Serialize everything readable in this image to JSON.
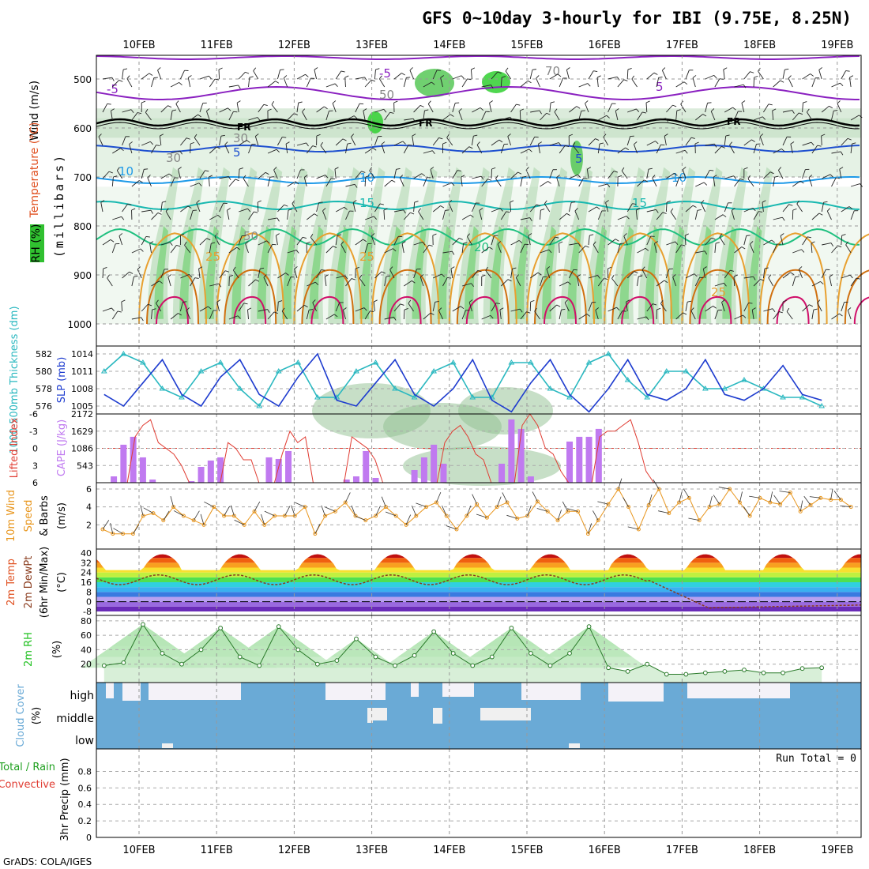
{
  "title": "GFS 0~10day 3-hourly for IBI (9.75E, 8.25N)",
  "footer": "GrADS: COLA/IGES",
  "dates": [
    "10FEB",
    "11FEB",
    "12FEB",
    "13FEB",
    "14FEB",
    "15FEB",
    "16FEB",
    "17FEB",
    "18FEB",
    "19FEB"
  ],
  "panels": {
    "upper": {
      "ylabels": [
        "Wind (m/s)",
        "Temperature (°C)",
        "RH (%)",
        "(millibars)"
      ],
      "yticks": [
        "500",
        "600",
        "700",
        "800",
        "900",
        "1000"
      ],
      "contour_labels": [
        "-5",
        "-5",
        "5",
        "FR",
        "FR",
        "FR",
        "5",
        "5",
        "10",
        "10",
        "10",
        "15",
        "15",
        "20",
        "25",
        "25",
        "25",
        "30",
        "30",
        "50",
        "50",
        "70"
      ]
    },
    "slp": {
      "ylabels": [
        "1000-500mb Thickness (dm)",
        "SLP (mb)"
      ],
      "thickness_ticks": [
        "582",
        "580",
        "578",
        "576"
      ],
      "slp_ticks": [
        "1014",
        "1011",
        "1008",
        "1005"
      ]
    },
    "cape": {
      "ylabels": [
        "Lifted Index",
        "CAPE (J/kg)"
      ],
      "li_ticks": [
        "-6",
        "-3",
        "0",
        "3",
        "6"
      ],
      "cape_ticks": [
        "2172",
        "1629",
        "1086",
        "543"
      ]
    },
    "wind10": {
      "ylabels": [
        "10m Wind",
        "Speed",
        "& Barbs",
        "(m/s)"
      ],
      "yticks": [
        "6",
        "4",
        "2"
      ]
    },
    "temp2m": {
      "ylabels": [
        "2m Temp",
        "2m DewPt",
        "(6hr Min/Max)",
        "(°C)"
      ],
      "yticks": [
        "40",
        "32",
        "24",
        "16",
        "8",
        "0",
        "-8"
      ]
    },
    "rh2m": {
      "ylabels": [
        "2m RH",
        "(%)"
      ],
      "yticks": [
        "80",
        "60",
        "40",
        "20"
      ]
    },
    "cloud": {
      "ylabels": [
        "Cloud Cover",
        "(%)"
      ],
      "levels": [
        "high",
        "middle",
        "low"
      ]
    },
    "precip": {
      "ylabels": [
        "Total / Rain",
        "Convective",
        "3hr Precip (mm)"
      ],
      "yticks": [
        "0.8",
        "0.6",
        "0.4",
        "0.2",
        "0"
      ],
      "run_total": "Run Total = 0"
    }
  },
  "colors": {
    "slp": "#1e3ccf",
    "thickness": "#2ab8c0",
    "lifted_index": "#e03c32",
    "cape": "#c07af0",
    "wind_speed": "#e8961e",
    "rh_green": "#20c020",
    "cloud": "#6aaad6",
    "dewpoint": "#8a3c1e"
  },
  "chart_data": [
    {
      "type": "line",
      "title": "1000-500mb Thickness (dm) / SLP (mb)",
      "x": [
        0,
        0.25,
        0.5,
        0.75,
        1,
        1.25,
        1.5,
        1.75,
        2,
        2.25,
        2.5,
        2.75,
        3,
        3.25,
        3.5,
        3.75,
        4,
        4.25,
        4.5,
        4.75,
        5,
        5.25,
        5.5,
        5.75,
        6,
        6.25,
        6.5,
        6.75,
        7,
        7.25,
        7.5,
        7.75,
        8,
        8.25,
        8.5,
        8.75,
        9,
        9.25
      ],
      "series": [
        {
          "name": "SLP (mb)",
          "values": [
            1007,
            1005,
            1009,
            1013,
            1007,
            1005,
            1010,
            1013,
            1007,
            1005,
            1010,
            1014,
            1006,
            1005,
            1009,
            1013,
            1007,
            1005,
            1008,
            1013,
            1006,
            1004,
            1009,
            1013,
            1007,
            1004,
            1008,
            1013,
            1007,
            1006,
            1008,
            1013,
            1007,
            1006,
            1008,
            1012,
            1007,
            1006
          ]
        },
        {
          "name": "1000-500mb Thickness (dm)",
          "values": [
            580,
            582,
            581,
            578,
            577,
            580,
            581,
            578,
            576,
            580,
            581,
            577,
            577,
            580,
            581,
            578,
            577,
            580,
            581,
            577,
            577,
            581,
            581,
            578,
            577,
            581,
            582,
            579,
            577,
            580,
            580,
            578,
            578,
            579,
            578,
            577,
            577,
            576
          ]
        }
      ]
    },
    {
      "type": "bar",
      "title": "CAPE (J/kg)",
      "x": [
        0.125,
        0.25,
        0.375,
        0.5,
        0.625,
        1.125,
        1.25,
        1.375,
        1.5,
        2.125,
        2.25,
        2.375,
        3.125,
        3.25,
        3.375,
        3.5,
        4.0,
        4.125,
        4.25,
        4.375,
        5.125,
        5.25,
        5.375,
        5.5,
        6.0,
        6.125,
        6.25,
        6.375
      ],
      "values": [
        200,
        1200,
        1450,
        800,
        100,
        50,
        500,
        700,
        800,
        800,
        750,
        1000,
        100,
        200,
        1000,
        150,
        400,
        800,
        1200,
        600,
        600,
        2000,
        1700,
        200,
        1300,
        1450,
        1450,
        1700
      ]
    },
    {
      "type": "line",
      "title": "2m RH (%)",
      "x": [
        0,
        0.25,
        0.5,
        0.75,
        1,
        1.25,
        1.5,
        1.75,
        2,
        2.25,
        2.5,
        2.75,
        3,
        3.25,
        3.5,
        3.75,
        4,
        4.25,
        4.5,
        4.75,
        5,
        5.25,
        5.5,
        5.75,
        6,
        6.25,
        6.5,
        6.75,
        7,
        7.25,
        7.5,
        7.75,
        8,
        8.25,
        8.5,
        8.75,
        9,
        9.25
      ],
      "values": [
        18,
        22,
        75,
        35,
        20,
        40,
        70,
        30,
        18,
        72,
        40,
        20,
        25,
        55,
        30,
        18,
        32,
        65,
        35,
        18,
        30,
        70,
        35,
        18,
        35,
        72,
        15,
        10,
        20,
        6,
        6,
        8,
        10,
        12,
        8,
        8,
        14,
        15
      ]
    }
  ]
}
